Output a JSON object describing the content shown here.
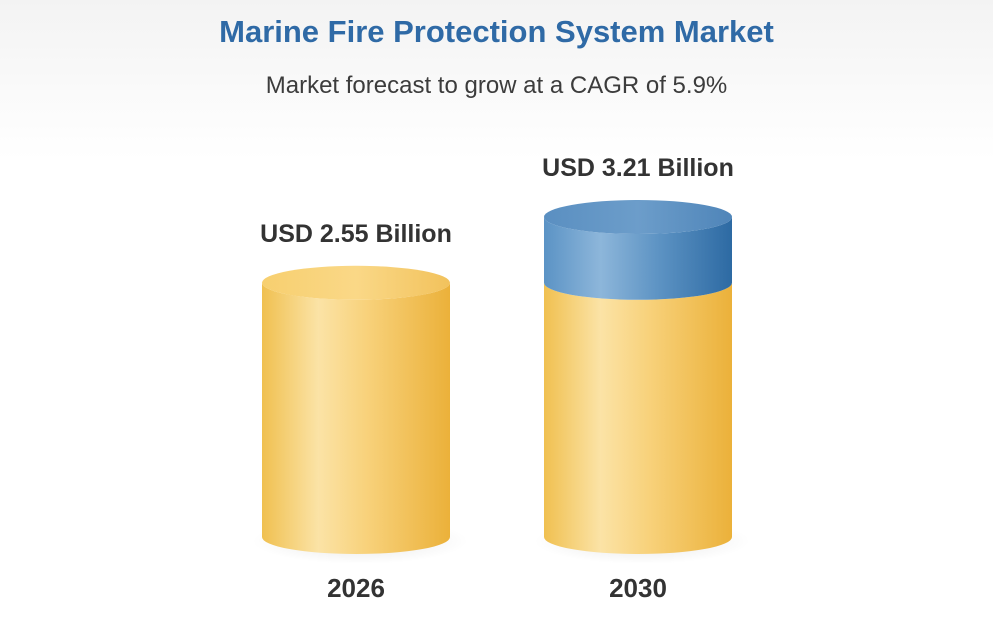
{
  "chart_data": {
    "type": "bar",
    "title": "Marine Fire Protection System Market",
    "subtitle": "Market forecast to grow at a CAGR of 5.9%",
    "categories": [
      "2026",
      "2030"
    ],
    "values": [
      2.55,
      3.21
    ],
    "value_labels": [
      "USD 2.55 Billion",
      "USD 3.21 Billion"
    ],
    "xlabel": "",
    "ylabel": "",
    "ylim": [
      0,
      3.21
    ],
    "grid": false,
    "legend": "none",
    "style": "3d-cylinder",
    "colors": {
      "base": "#f5c65a",
      "growth": "#4f88bd",
      "title": "#2f6aa6"
    }
  }
}
